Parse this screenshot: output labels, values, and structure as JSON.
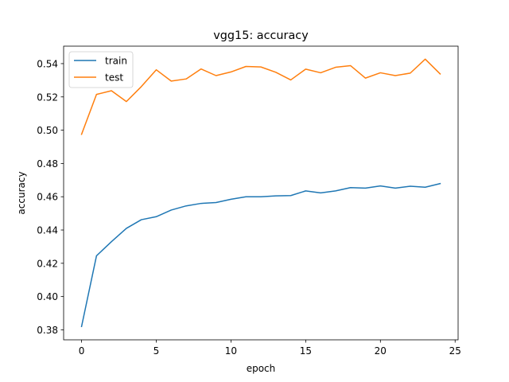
{
  "chart_data": {
    "type": "line",
    "title": "vgg15: accuracy",
    "xlabel": "epoch",
    "ylabel": "accuracy",
    "xlim": [
      -1.2,
      25.2
    ],
    "ylim": [
      0.374,
      0.5505
    ],
    "xticks": [
      0,
      5,
      10,
      15,
      20,
      25
    ],
    "xtick_labels": [
      "0",
      "5",
      "10",
      "15",
      "20",
      "25"
    ],
    "yticks": [
      0.38,
      0.4,
      0.42,
      0.44,
      0.46,
      0.48,
      0.5,
      0.52,
      0.54
    ],
    "ytick_labels": [
      "0.38",
      "0.40",
      "0.42",
      "0.44",
      "0.46",
      "0.48",
      "0.50",
      "0.52",
      "0.54"
    ],
    "grid": false,
    "legend_position": "top-left",
    "x": [
      0,
      1,
      2,
      3,
      4,
      5,
      6,
      7,
      8,
      9,
      10,
      11,
      12,
      13,
      14,
      15,
      16,
      17,
      18,
      19,
      20,
      21,
      22,
      23,
      24
    ],
    "series": [
      {
        "name": "train",
        "color": "#1f77b4",
        "values": [
          0.382,
          0.4245,
          0.433,
          0.441,
          0.4462,
          0.448,
          0.452,
          0.4545,
          0.456,
          0.4565,
          0.4585,
          0.46,
          0.46,
          0.4605,
          0.4607,
          0.4635,
          0.4623,
          0.4635,
          0.4655,
          0.4652,
          0.4665,
          0.4652,
          0.4663,
          0.4657,
          0.4679
        ]
      },
      {
        "name": "test",
        "color": "#ff7f0e",
        "values": [
          0.4975,
          0.5215,
          0.5237,
          0.5172,
          0.5262,
          0.5363,
          0.5295,
          0.5308,
          0.5368,
          0.5328,
          0.535,
          0.5383,
          0.538,
          0.5348,
          0.5302,
          0.5367,
          0.5345,
          0.5378,
          0.5388,
          0.5313,
          0.5345,
          0.5328,
          0.5343,
          0.5427,
          0.5338
        ]
      }
    ]
  }
}
